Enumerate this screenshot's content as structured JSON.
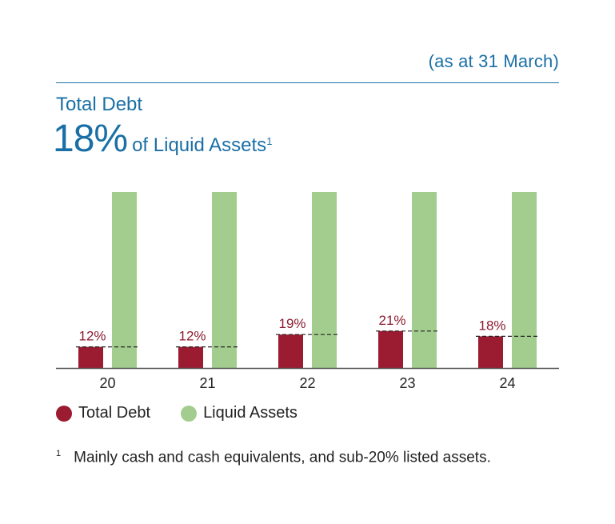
{
  "header": {
    "as_at": "(as at 31 March)",
    "title": "Total Debt",
    "headline_value": "18%",
    "headline_text": "of Liquid Assets",
    "headline_sup": "1"
  },
  "colors": {
    "accent": "#1a6fa6",
    "debt": "#9b1b30",
    "liquid": "#a2cd8e",
    "label": "#8c1b2f"
  },
  "chart_data": {
    "type": "bar",
    "categories": [
      "20",
      "21",
      "22",
      "23",
      "24"
    ],
    "series": [
      {
        "name": "Total Debt",
        "values": [
          12,
          12,
          19,
          21,
          18
        ]
      },
      {
        "name": "Liquid Assets",
        "values": [
          100,
          100,
          100,
          100,
          100
        ]
      }
    ],
    "data_labels": [
      "12%",
      "12%",
      "19%",
      "21%",
      "18%"
    ],
    "ylim": [
      0,
      100
    ],
    "grid": false,
    "legend": "bottom-left"
  },
  "legend": {
    "items": [
      {
        "label": "Total Debt"
      },
      {
        "label": "Liquid Assets"
      }
    ]
  },
  "footnote": {
    "mark": "1",
    "text": "Mainly cash and cash equivalents, and sub-20% listed assets."
  }
}
